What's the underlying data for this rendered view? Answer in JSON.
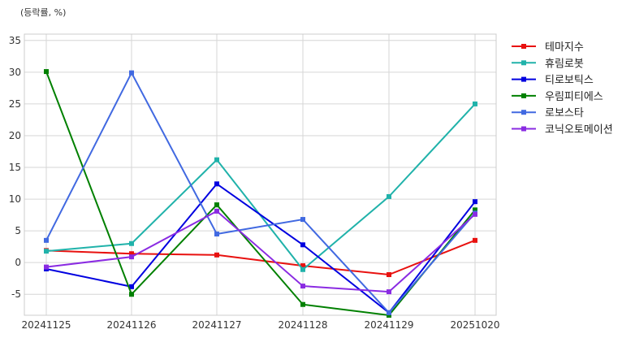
{
  "chart_data": {
    "type": "line",
    "unit_label": "(등락률, %)",
    "categories": [
      "20241125",
      "20241126",
      "20241127",
      "20241128",
      "20241129",
      "20251020"
    ],
    "ylim": [
      -8.3,
      36
    ],
    "yticks": [
      -5,
      0,
      5,
      10,
      15,
      20,
      25,
      30,
      35
    ],
    "grid": true,
    "legend_position": "right-outside-top",
    "marker": "square",
    "series": [
      {
        "name": "테마지수",
        "color": "#e8110f",
        "values": [
          1.9,
          1.4,
          1.2,
          -0.5,
          -1.9,
          3.5
        ]
      },
      {
        "name": "휴림로봇",
        "color": "#20b2aa",
        "values": [
          1.8,
          3.0,
          16.2,
          -1.1,
          10.4,
          25.0
        ]
      },
      {
        "name": "티로보틱스",
        "color": "#0000e0",
        "values": [
          -1.0,
          -3.8,
          12.4,
          2.8,
          -7.9,
          9.6
        ]
      },
      {
        "name": "우림피티에스",
        "color": "#008000",
        "values": [
          30.1,
          -5.0,
          9.1,
          -6.6,
          -8.3,
          8.3
        ]
      },
      {
        "name": "로보스타",
        "color": "#4169e1",
        "values": [
          3.5,
          29.9,
          4.5,
          6.8,
          -7.9,
          7.8
        ]
      },
      {
        "name": "코닉오토메이션",
        "color": "#8a2be2",
        "values": [
          -0.7,
          0.9,
          8.1,
          -3.7,
          -4.6,
          7.6
        ]
      }
    ]
  }
}
